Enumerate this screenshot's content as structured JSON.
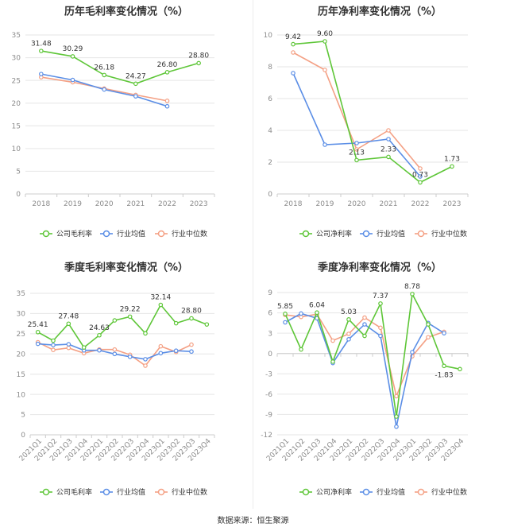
{
  "source_label": "数据来源：恒生聚源",
  "colors": {
    "company": "#5ec638",
    "average": "#5b8ee6",
    "median": "#f4a084",
    "axis": "#cccccc",
    "grid": "#e6e6e6",
    "tick": "#8c8c8c",
    "title": "#333333"
  },
  "chart_data": [
    {
      "type": "line",
      "title": "历年毛利率变化情况（%）",
      "categories": [
        "2018",
        "2019",
        "2020",
        "2021",
        "2022",
        "2023"
      ],
      "ylim": [
        0,
        35
      ],
      "yticks": [
        0,
        5,
        10,
        15,
        20,
        25,
        30,
        35
      ],
      "series": [
        {
          "name": "公司毛利率",
          "color": "#5ec638",
          "values": [
            31.48,
            30.29,
            26.18,
            24.27,
            26.8,
            28.8
          ],
          "labels": [
            "31.48",
            "30.29",
            "26.18",
            "24.27",
            "26.80",
            "28.80"
          ]
        },
        {
          "name": "行业均值",
          "color": "#5b8ee6",
          "values": [
            26.4,
            25.1,
            23.0,
            21.5,
            19.3,
            null
          ]
        },
        {
          "name": "行业中位数",
          "color": "#f4a084",
          "values": [
            25.7,
            24.6,
            23.2,
            21.8,
            20.5,
            null
          ]
        }
      ]
    },
    {
      "type": "line",
      "title": "历年净利率变化情况（%）",
      "categories": [
        "2018",
        "2019",
        "2020",
        "2021",
        "2022",
        "2023"
      ],
      "ylim": [
        0,
        10
      ],
      "yticks": [
        0,
        2,
        4,
        6,
        8,
        10
      ],
      "series": [
        {
          "name": "公司净利率",
          "color": "#5ec638",
          "values": [
            9.42,
            9.6,
            2.13,
            2.33,
            0.73,
            1.73
          ],
          "labels": [
            "9.42",
            "9.60",
            "2.13",
            "2.33",
            "0.73",
            "1.73"
          ]
        },
        {
          "name": "行业均值",
          "color": "#5b8ee6",
          "values": [
            7.6,
            3.1,
            3.2,
            3.45,
            1.1,
            null
          ]
        },
        {
          "name": "行业中位数",
          "color": "#f4a084",
          "values": [
            8.9,
            7.8,
            2.8,
            4.0,
            1.6,
            null
          ]
        }
      ]
    },
    {
      "type": "line",
      "title": "季度毛利率变化情况（%）",
      "categories": [
        "2021Q1",
        "2021Q2",
        "2021Q3",
        "2021Q4",
        "2022Q1",
        "2022Q2",
        "2022Q3",
        "2022Q4",
        "2023Q1",
        "2023Q2",
        "2023Q3",
        "2023Q4"
      ],
      "ylim": [
        0,
        35
      ],
      "yticks": [
        0,
        5,
        10,
        15,
        20,
        25,
        30,
        35
      ],
      "series": [
        {
          "name": "公司毛利率",
          "color": "#5ec638",
          "values": [
            25.41,
            23.3,
            27.48,
            21.6,
            24.63,
            28.3,
            29.22,
            25.1,
            32.14,
            27.6,
            28.8,
            27.3
          ],
          "labels": [
            "25.41",
            "",
            "27.48",
            "",
            "24.63",
            "",
            "29.22",
            "",
            "32.14",
            "",
            "28.80",
            ""
          ]
        },
        {
          "name": "行业均值",
          "color": "#5b8ee6",
          "values": [
            22.5,
            22.2,
            22.4,
            20.9,
            20.9,
            20.0,
            19.3,
            18.7,
            20.2,
            20.8,
            20.6,
            null
          ]
        },
        {
          "name": "行业中位数",
          "color": "#f4a084",
          "values": [
            22.9,
            21.0,
            21.5,
            20.2,
            21.1,
            21.1,
            19.8,
            17.1,
            21.9,
            20.5,
            22.3,
            null
          ]
        }
      ]
    },
    {
      "type": "line",
      "title": "季度净利率变化情况（%）",
      "categories": [
        "2021Q1",
        "2021Q2",
        "2021Q3",
        "2021Q4",
        "2022Q1",
        "2022Q2",
        "2022Q3",
        "2022Q4",
        "2023Q1",
        "2023Q2",
        "2023Q3",
        "2023Q4"
      ],
      "ylim": [
        -12,
        9
      ],
      "yticks": [
        -12,
        -9,
        -6,
        -3,
        0,
        3,
        6,
        9
      ],
      "series": [
        {
          "name": "公司净利率",
          "color": "#5ec638",
          "values": [
            5.85,
            0.6,
            6.04,
            -1.2,
            5.03,
            2.6,
            7.37,
            -9.3,
            8.78,
            4.3,
            -1.83,
            -2.3
          ],
          "labels": [
            "5.85",
            "",
            "6.04",
            "",
            "5.03",
            "",
            "7.37",
            "",
            "8.78",
            "",
            "-1.83",
            ""
          ]
        },
        {
          "name": "行业均值",
          "color": "#5b8ee6",
          "values": [
            4.6,
            5.9,
            5.2,
            -1.4,
            2.1,
            4.3,
            2.6,
            -10.8,
            0.2,
            4.5,
            3.0,
            null
          ]
        },
        {
          "name": "行业中位数",
          "color": "#f4a084",
          "values": [
            5.7,
            5.4,
            5.8,
            1.9,
            2.9,
            5.3,
            3.8,
            -6.3,
            -0.4,
            2.4,
            3.2,
            null
          ]
        }
      ]
    }
  ]
}
